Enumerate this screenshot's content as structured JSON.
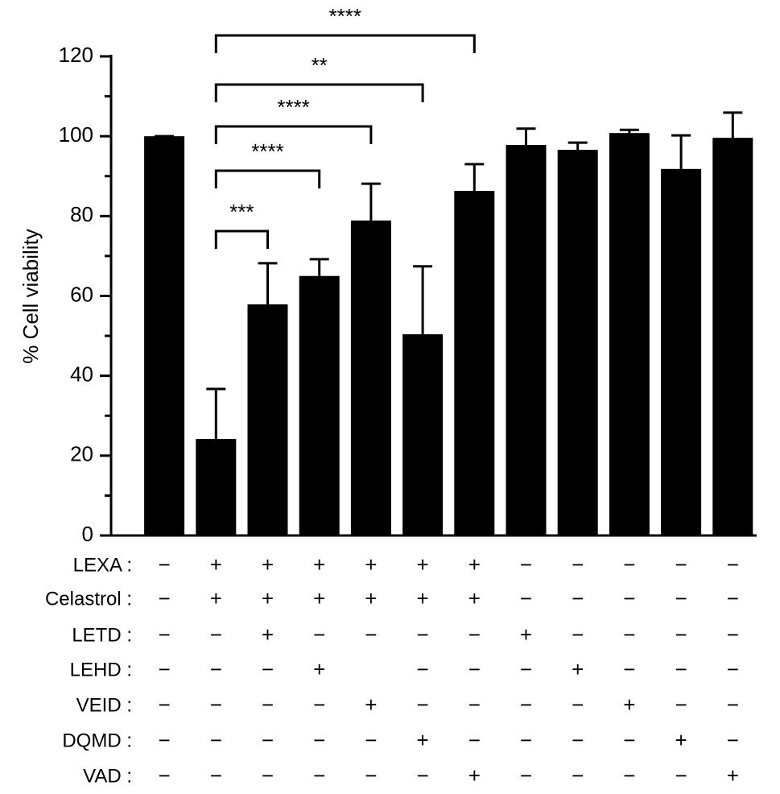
{
  "chart_data": {
    "type": "bar",
    "ylabel": "% Cell viability",
    "categories": [
      null,
      null,
      null,
      null,
      null,
      null,
      null,
      null,
      null,
      null,
      null,
      null
    ],
    "series": [
      {
        "color": "#000000",
        "values": [
          100,
          24.2,
          57.9,
          65,
          78.9,
          50.4,
          86.3,
          97.8,
          96.6,
          100.8,
          91.8,
          99.6
        ],
        "errors": [
          0,
          12.5,
          10.3,
          4.2,
          9.2,
          17,
          6.7,
          4.1,
          1.8,
          0.8,
          8.4,
          6.3
        ]
      }
    ],
    "ylim": [
      0,
      120
    ],
    "yticks": [
      0,
      20,
      40,
      60,
      80,
      100,
      120
    ],
    "yticks_minor": [
      10,
      30,
      50,
      70,
      90,
      110
    ],
    "annotations": [
      {
        "text": "***",
        "from": 1,
        "to": 2
      },
      {
        "text": "****",
        "from": 1,
        "to": 3
      },
      {
        "text": "****",
        "from": 1,
        "to": 4
      },
      {
        "text": "**",
        "from": 1,
        "to": 5
      },
      {
        "text": "****",
        "from": 1,
        "to": 6
      }
    ],
    "treatments": [
      {
        "label": "LEXA :",
        "values": [
          "−",
          "+",
          "+",
          "+",
          "+",
          "+",
          "+",
          "−",
          "−",
          "−",
          "−",
          "−"
        ]
      },
      {
        "label": "Celastrol :",
        "values": [
          "−",
          "+",
          "+",
          "+",
          "+",
          "+",
          "+",
          "−",
          "−",
          "−",
          "−",
          "−"
        ]
      },
      {
        "label": "LETD :",
        "values": [
          "−",
          "−",
          "+",
          "−",
          "−",
          "−",
          "−",
          "+",
          "−",
          "−",
          "−",
          "−"
        ]
      },
      {
        "label": "LEHD :",
        "values": [
          "−",
          "−",
          "−",
          "+",
          "",
          "−",
          "−",
          "−",
          "+",
          "−",
          "−",
          "−"
        ]
      },
      {
        "label": "VEID :",
        "values": [
          "−",
          "−",
          "−",
          "−",
          "+",
          "−",
          "−",
          "−",
          "−",
          "+",
          "−",
          "−"
        ]
      },
      {
        "label": "DQMD :",
        "values": [
          "−",
          "−",
          "−",
          "−",
          "−",
          "+",
          "−",
          "−",
          "−",
          "−",
          "+",
          "−"
        ]
      },
      {
        "label": "VAD :",
        "values": [
          "−",
          "−",
          "−",
          "−",
          "−",
          "−",
          "+",
          "−",
          "−",
          "−",
          "−",
          "+"
        ]
      }
    ]
  }
}
